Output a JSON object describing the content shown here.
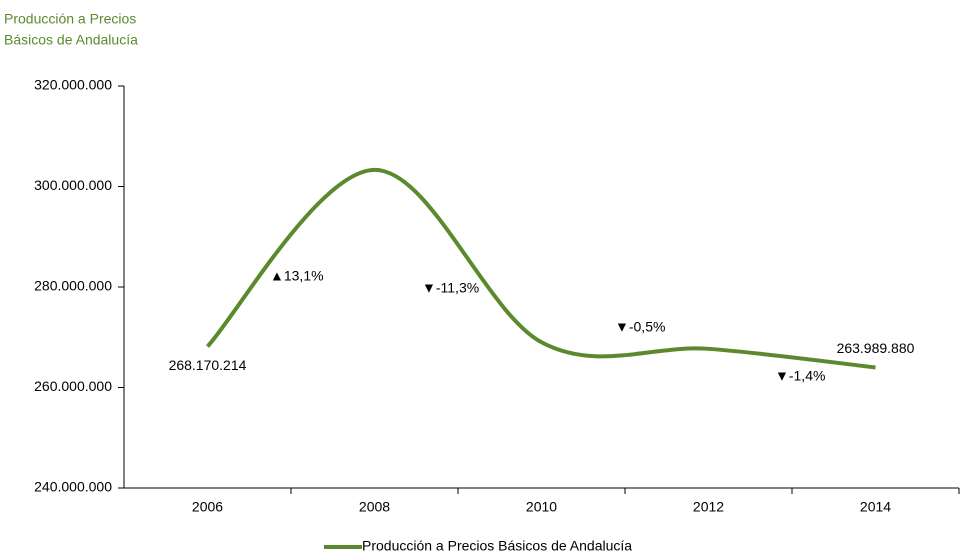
{
  "chart_data": {
    "type": "line",
    "title": [
      "Producción a Precios",
      "Básicos de Andalucía"
    ],
    "categories": [
      "2006",
      "2008",
      "2010",
      "2012",
      "2014"
    ],
    "series": [
      {
        "name": "Producción a Precios Básicos de Andalucía",
        "color": "#5b8a2e",
        "values": [
          268170214,
          303300000,
          269000000,
          267700000,
          263989880
        ],
        "value_labels": [
          "268.170.214",
          null,
          null,
          null,
          "263.989.880"
        ]
      }
    ],
    "annotations": [
      "▲13,1%",
      "▼-11,3%",
      "▼-0,5%",
      "▼-1,4%"
    ],
    "ylim": [
      240000000,
      320000000
    ],
    "yticks": [
      {
        "value": 240000000,
        "label": "240.000.000"
      },
      {
        "value": 260000000,
        "label": "260.000.000"
      },
      {
        "value": 280000000,
        "label": "280.000.000"
      },
      {
        "value": 300000000,
        "label": "300.000.000"
      },
      {
        "value": 320000000,
        "label": "320.000.000"
      }
    ],
    "grid": false
  }
}
